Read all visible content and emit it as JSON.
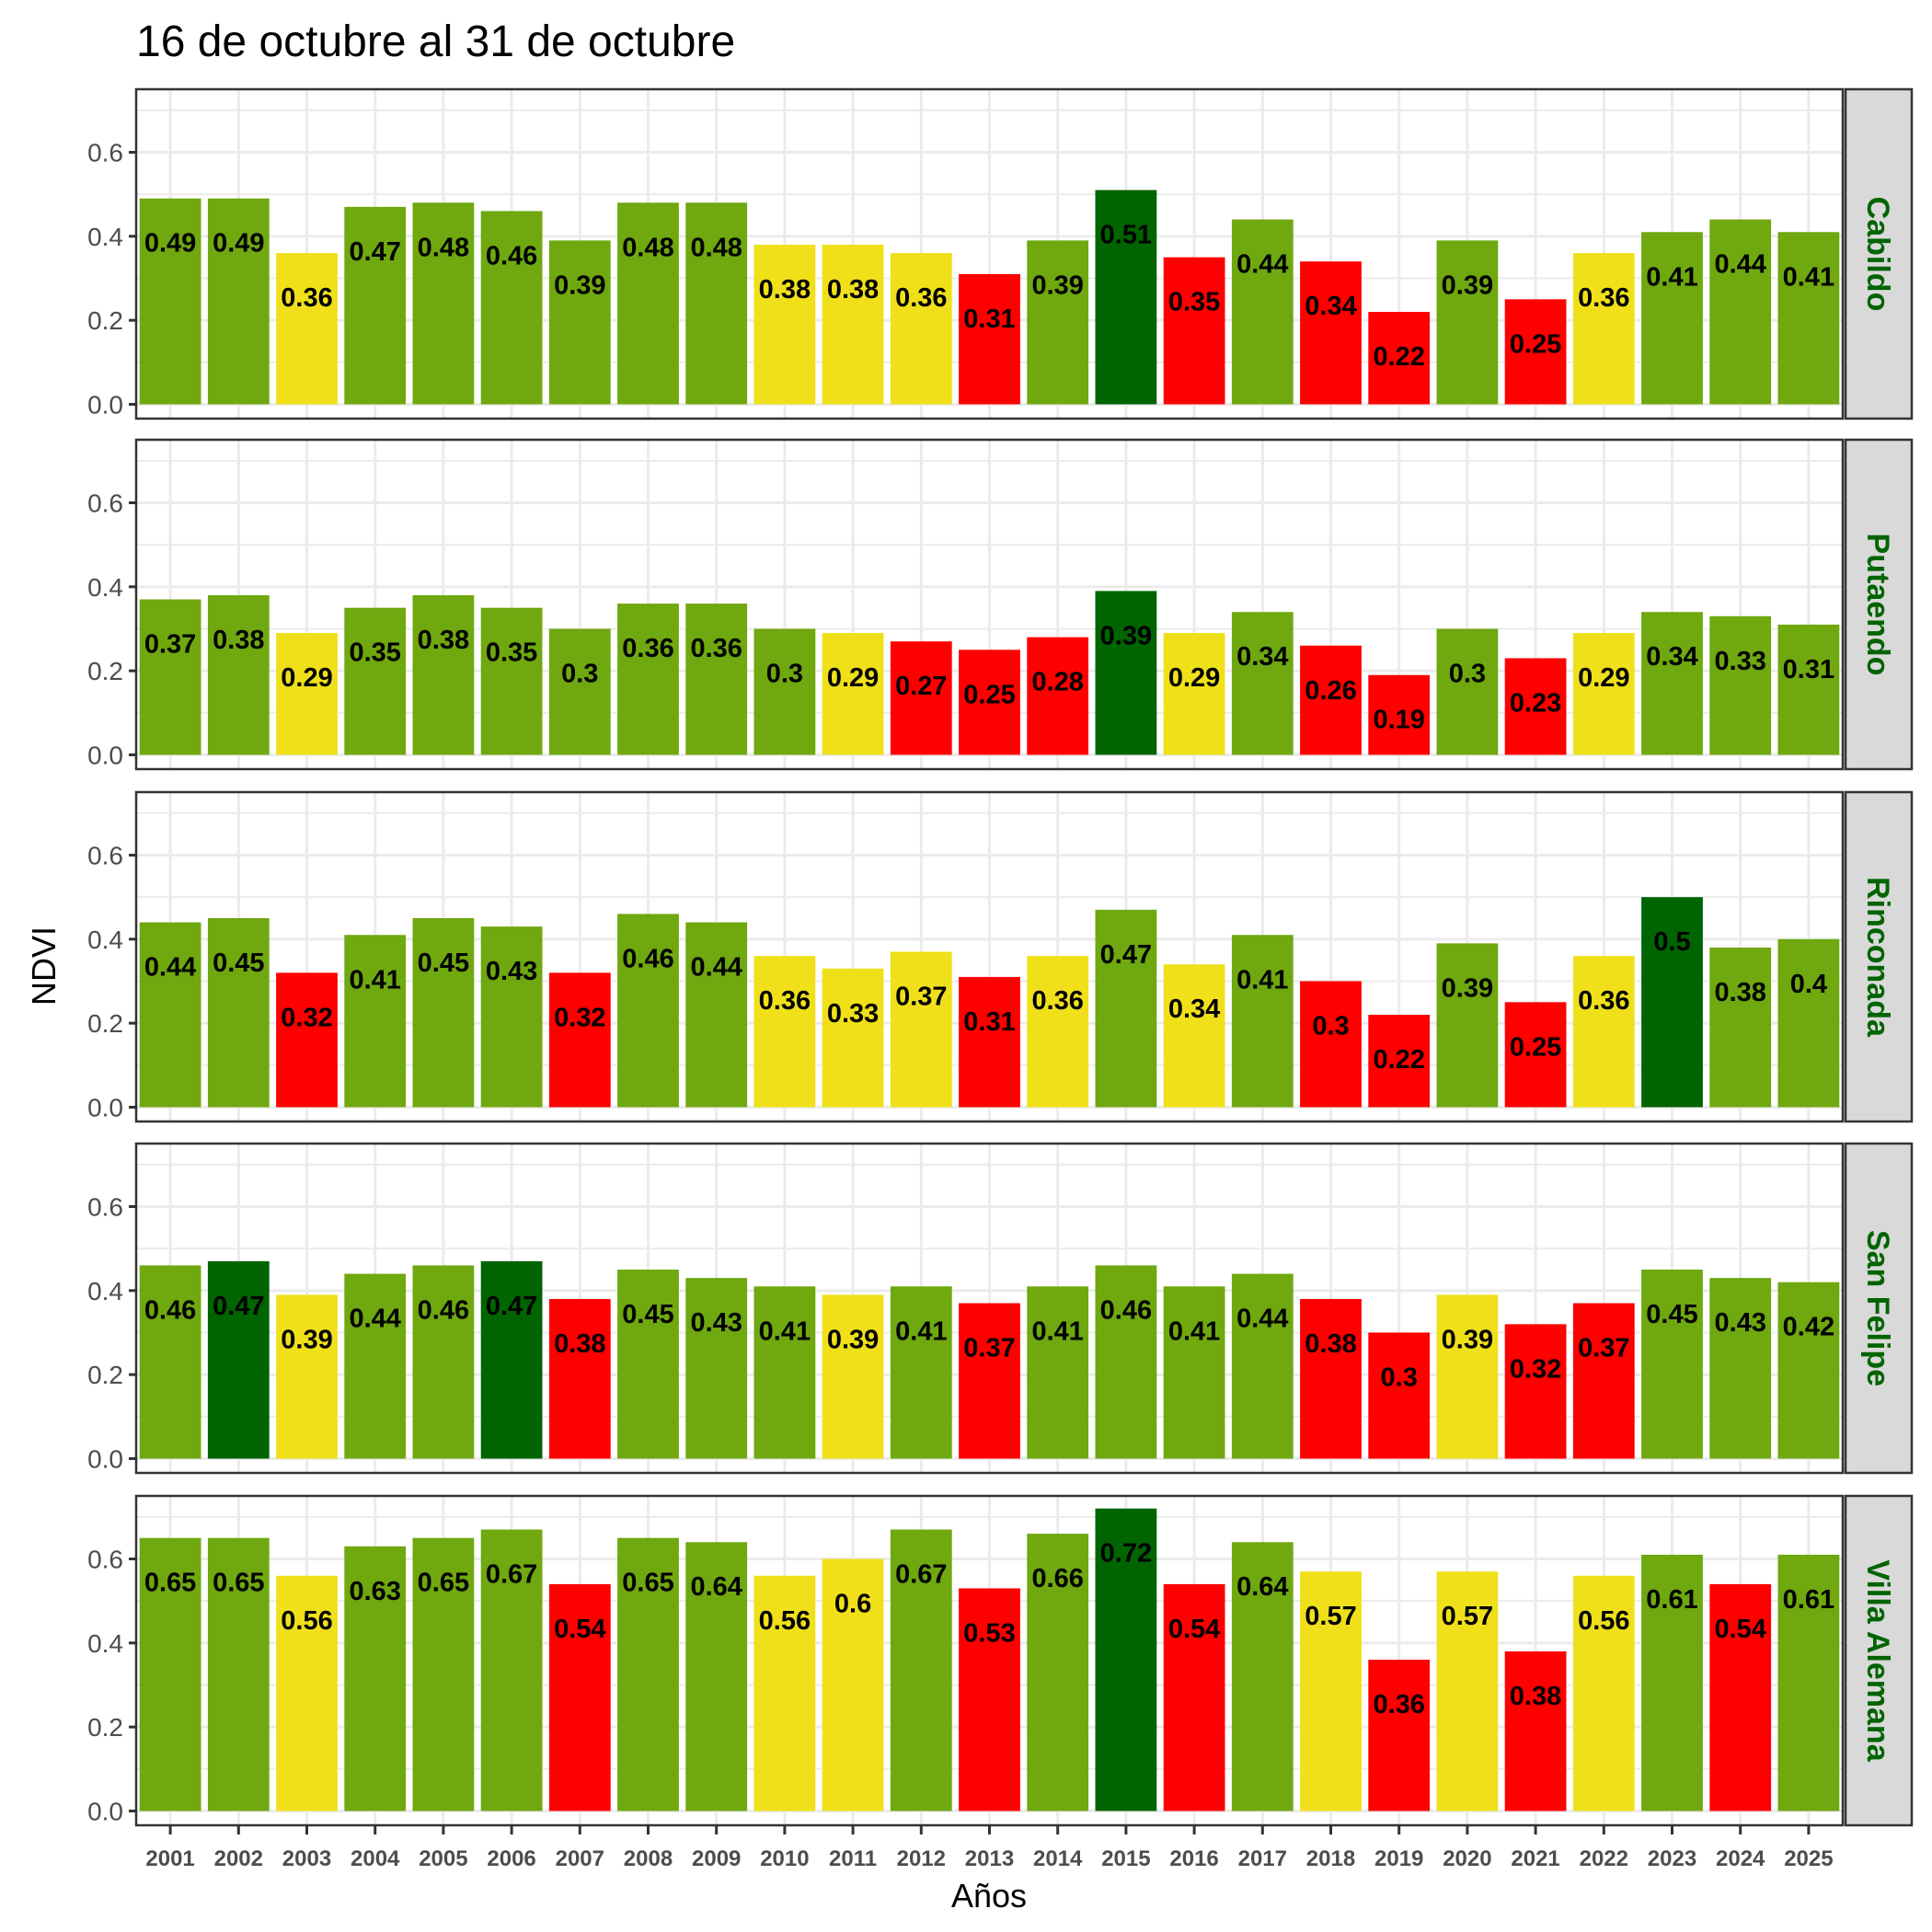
{
  "chart_data": {
    "type": "bar",
    "title": "16 de octubre al 31 de octubre",
    "xlabel": "Años",
    "ylabel": "NDVI",
    "ylim": [
      0,
      0.72
    ],
    "yticks": [
      "0.0",
      "0.2",
      "0.4",
      "0.6"
    ],
    "ytick_values": [
      0,
      0.2,
      0.4,
      0.6
    ],
    "grid": true,
    "categories": [
      "2001",
      "2002",
      "2003",
      "2004",
      "2005",
      "2006",
      "2007",
      "2008",
      "2009",
      "2010",
      "2011",
      "2012",
      "2013",
      "2014",
      "2015",
      "2016",
      "2017",
      "2018",
      "2019",
      "2020",
      "2021",
      "2022",
      "2023",
      "2024",
      "2025"
    ],
    "colors": {
      "green": "#6FA80F",
      "dark_green": "#006400",
      "yellow": "#F0E01A",
      "red": "#FF0000",
      "strip_text": "#006400",
      "strip_bg": "#D9D9D9"
    },
    "panels": [
      {
        "name": "Cabildo",
        "values": [
          0.49,
          0.49,
          0.36,
          0.47,
          0.48,
          0.46,
          0.39,
          0.48,
          0.48,
          0.38,
          0.38,
          0.36,
          0.31,
          0.39,
          0.51,
          0.35,
          0.44,
          0.34,
          0.22,
          0.39,
          0.25,
          0.36,
          0.41,
          0.44,
          0.41
        ],
        "classes": [
          "green",
          "green",
          "yellow",
          "green",
          "green",
          "green",
          "green",
          "green",
          "green",
          "yellow",
          "yellow",
          "yellow",
          "red",
          "green",
          "dark_green",
          "red",
          "green",
          "red",
          "red",
          "green",
          "red",
          "yellow",
          "green",
          "green",
          "green"
        ]
      },
      {
        "name": "Putaendo",
        "values": [
          0.37,
          0.38,
          0.29,
          0.35,
          0.38,
          0.35,
          0.3,
          0.36,
          0.36,
          0.3,
          0.29,
          0.27,
          0.25,
          0.28,
          0.39,
          0.29,
          0.34,
          0.26,
          0.19,
          0.3,
          0.23,
          0.29,
          0.34,
          0.33,
          0.31
        ],
        "classes": [
          "green",
          "green",
          "yellow",
          "green",
          "green",
          "green",
          "green",
          "green",
          "green",
          "green",
          "yellow",
          "red",
          "red",
          "red",
          "dark_green",
          "yellow",
          "green",
          "red",
          "red",
          "green",
          "red",
          "yellow",
          "green",
          "green",
          "green"
        ]
      },
      {
        "name": "Rinconada",
        "values": [
          0.44,
          0.45,
          0.32,
          0.41,
          0.45,
          0.43,
          0.32,
          0.46,
          0.44,
          0.36,
          0.33,
          0.37,
          0.31,
          0.36,
          0.47,
          0.34,
          0.41,
          0.3,
          0.22,
          0.39,
          0.25,
          0.36,
          0.5,
          0.38,
          0.4
        ],
        "classes": [
          "green",
          "green",
          "red",
          "green",
          "green",
          "green",
          "red",
          "green",
          "green",
          "yellow",
          "yellow",
          "yellow",
          "red",
          "yellow",
          "green",
          "yellow",
          "green",
          "red",
          "red",
          "green",
          "red",
          "yellow",
          "dark_green",
          "green",
          "green"
        ]
      },
      {
        "name": "San Felipe",
        "values": [
          0.46,
          0.47,
          0.39,
          0.44,
          0.46,
          0.47,
          0.38,
          0.45,
          0.43,
          0.41,
          0.39,
          0.41,
          0.37,
          0.41,
          0.46,
          0.41,
          0.44,
          0.38,
          0.3,
          0.39,
          0.32,
          0.37,
          0.45,
          0.43,
          0.42
        ],
        "classes": [
          "green",
          "dark_green",
          "yellow",
          "green",
          "green",
          "dark_green",
          "red",
          "green",
          "green",
          "green",
          "yellow",
          "green",
          "red",
          "green",
          "green",
          "green",
          "green",
          "red",
          "red",
          "yellow",
          "red",
          "red",
          "green",
          "green",
          "green"
        ]
      },
      {
        "name": "Villa Alemana",
        "values": [
          0.65,
          0.65,
          0.56,
          0.63,
          0.65,
          0.67,
          0.54,
          0.65,
          0.64,
          0.56,
          0.6,
          0.67,
          0.53,
          0.66,
          0.72,
          0.54,
          0.64,
          0.57,
          0.36,
          0.57,
          0.38,
          0.56,
          0.61,
          0.54,
          0.61
        ],
        "classes": [
          "green",
          "green",
          "yellow",
          "green",
          "green",
          "green",
          "red",
          "green",
          "green",
          "yellow",
          "yellow",
          "green",
          "red",
          "green",
          "dark_green",
          "red",
          "green",
          "yellow",
          "red",
          "yellow",
          "red",
          "yellow",
          "green",
          "red",
          "green"
        ]
      }
    ]
  }
}
